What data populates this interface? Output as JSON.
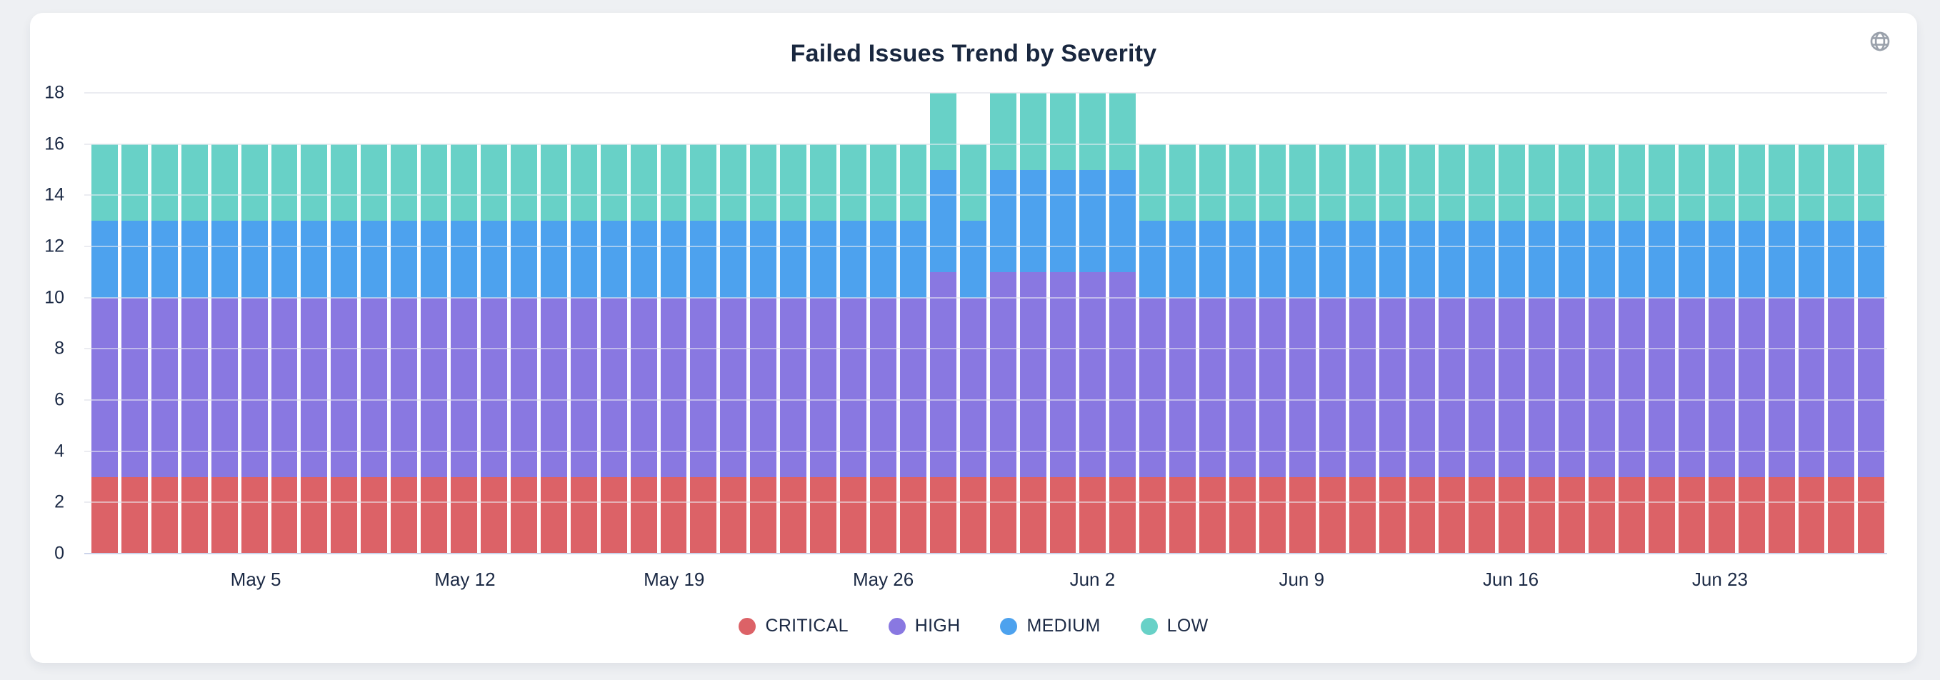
{
  "page": {
    "background_color": "#eef0f3",
    "card_color": "#ffffff"
  },
  "header": {
    "title": "Failed Issues Trend by Severity",
    "title_color": "#19273f"
  },
  "icons": {
    "globe": "globe-icon",
    "globe_color": "#9aa1ab"
  },
  "legend": {
    "position": "bottom",
    "items": [
      {
        "label": "CRITICAL",
        "color": "#dc6267"
      },
      {
        "label": "HIGH",
        "color": "#8978e1"
      },
      {
        "label": "MEDIUM",
        "color": "#4da2ee"
      },
      {
        "label": "LOW",
        "color": "#68d1c7"
      }
    ]
  },
  "chart_data": {
    "type": "bar",
    "stacked": true,
    "title": "Failed Issues Trend by Severity",
    "xlabel": "",
    "ylabel": "",
    "ylim": [
      0,
      18
    ],
    "y_ticks": [
      0,
      2,
      4,
      6,
      8,
      10,
      12,
      14,
      16,
      18
    ],
    "grid": true,
    "legend_position": "bottom",
    "x_tick_labels": [
      "May 5",
      "May 12",
      "May 19",
      "May 26",
      "Jun 2",
      "Jun 9",
      "Jun 16",
      "Jun 23"
    ],
    "categories": [
      "Apr 30",
      "May 1",
      "May 2",
      "May 3",
      "May 4",
      "May 5",
      "May 6",
      "May 7",
      "May 8",
      "May 9",
      "May 10",
      "May 11",
      "May 12",
      "May 13",
      "May 14",
      "May 15",
      "May 16",
      "May 17",
      "May 18",
      "May 19",
      "May 20",
      "May 21",
      "May 22",
      "May 23",
      "May 24",
      "May 25",
      "May 26",
      "May 27",
      "May 28",
      "May 29",
      "May 30",
      "May 31",
      "Jun 1",
      "Jun 2",
      "Jun 3",
      "Jun 4",
      "Jun 5",
      "Jun 6",
      "Jun 7",
      "Jun 8",
      "Jun 9",
      "Jun 10",
      "Jun 11",
      "Jun 12",
      "Jun 13",
      "Jun 14",
      "Jun 15",
      "Jun 16",
      "Jun 17",
      "Jun 18",
      "Jun 19",
      "Jun 20",
      "Jun 21",
      "Jun 22",
      "Jun 23",
      "Jun 24",
      "Jun 25",
      "Jun 26",
      "Jun 27",
      "Jun 28"
    ],
    "series": [
      {
        "name": "CRITICAL",
        "color": "#dc6267",
        "values": [
          3,
          3,
          3,
          3,
          3,
          3,
          3,
          3,
          3,
          3,
          3,
          3,
          3,
          3,
          3,
          3,
          3,
          3,
          3,
          3,
          3,
          3,
          3,
          3,
          3,
          3,
          3,
          3,
          3,
          3,
          3,
          3,
          3,
          3,
          3,
          3,
          3,
          3,
          3,
          3,
          3,
          3,
          3,
          3,
          3,
          3,
          3,
          3,
          3,
          3,
          3,
          3,
          3,
          3,
          3,
          3,
          3,
          3,
          3,
          3
        ]
      },
      {
        "name": "HIGH",
        "color": "#8978e1",
        "values": [
          7,
          7,
          7,
          7,
          7,
          7,
          7,
          7,
          7,
          7,
          7,
          7,
          7,
          7,
          7,
          7,
          7,
          7,
          7,
          7,
          7,
          7,
          7,
          7,
          7,
          7,
          7,
          7,
          8,
          7,
          8,
          8,
          8,
          8,
          8,
          7,
          7,
          7,
          7,
          7,
          7,
          7,
          7,
          7,
          7,
          7,
          7,
          7,
          7,
          7,
          7,
          7,
          7,
          7,
          7,
          7,
          7,
          7,
          7,
          7
        ]
      },
      {
        "name": "MEDIUM",
        "color": "#4da2ee",
        "values": [
          3,
          3,
          3,
          3,
          3,
          3,
          3,
          3,
          3,
          3,
          3,
          3,
          3,
          3,
          3,
          3,
          3,
          3,
          3,
          3,
          3,
          3,
          3,
          3,
          3,
          3,
          3,
          3,
          4,
          3,
          4,
          4,
          4,
          4,
          4,
          3,
          3,
          3,
          3,
          3,
          3,
          3,
          3,
          3,
          3,
          3,
          3,
          3,
          3,
          3,
          3,
          3,
          3,
          3,
          3,
          3,
          3,
          3,
          3,
          3
        ]
      },
      {
        "name": "LOW",
        "color": "#68d1c7",
        "values": [
          3,
          3,
          3,
          3,
          3,
          3,
          3,
          3,
          3,
          3,
          3,
          3,
          3,
          3,
          3,
          3,
          3,
          3,
          3,
          3,
          3,
          3,
          3,
          3,
          3,
          3,
          3,
          3,
          3,
          3,
          3,
          3,
          3,
          3,
          3,
          3,
          3,
          3,
          3,
          3,
          3,
          3,
          3,
          3,
          3,
          3,
          3,
          3,
          3,
          3,
          3,
          3,
          3,
          3,
          3,
          3,
          3,
          3,
          3,
          3
        ]
      }
    ]
  }
}
